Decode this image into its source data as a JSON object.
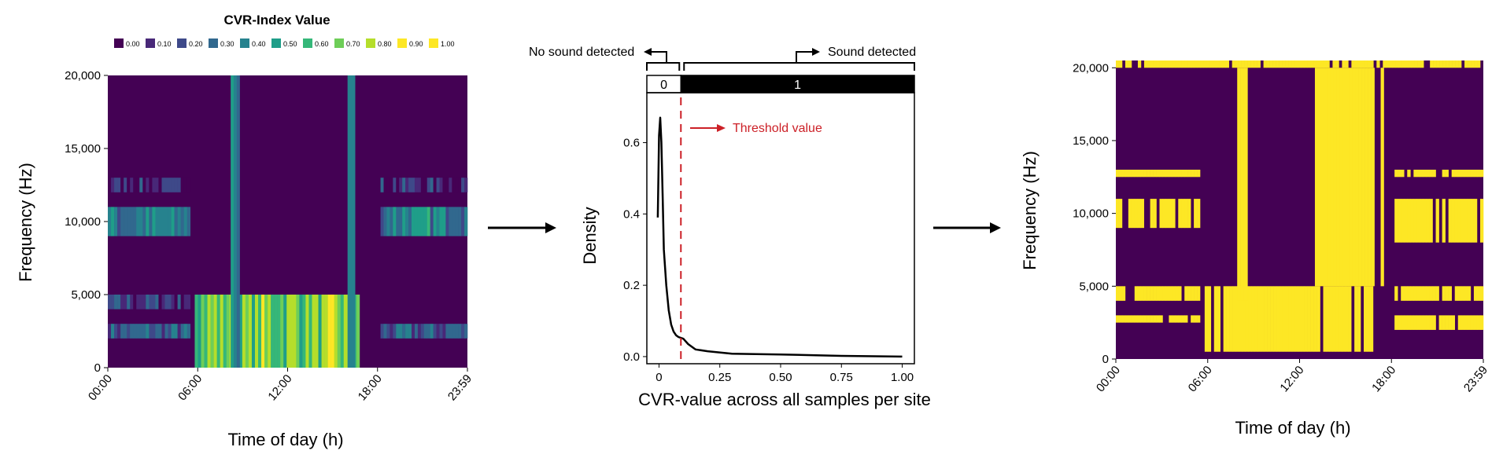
{
  "palette": [
    "#440154",
    "#482878",
    "#3e4989",
    "#31688e",
    "#26828e",
    "#1f9e89",
    "#35b779",
    "#6ece58",
    "#b5de2b",
    "#fde725"
  ],
  "legend": {
    "title": "CVR-Index Value",
    "entries": [
      {
        "label": "0.00",
        "color": "#440154"
      },
      {
        "label": "0.10",
        "color": "#482878"
      },
      {
        "label": "0.20",
        "color": "#3e4989"
      },
      {
        "label": "0.30",
        "color": "#31688e"
      },
      {
        "label": "0.40",
        "color": "#26828e"
      },
      {
        "label": "0.50",
        "color": "#1f9e89"
      },
      {
        "label": "0.60",
        "color": "#35b779"
      },
      {
        "label": "0.70",
        "color": "#6ece58"
      },
      {
        "label": "0.80",
        "color": "#b5de2b"
      },
      {
        "label": "0.90",
        "color": "#fde725"
      },
      {
        "label": "1.00",
        "color": "#fde725"
      }
    ]
  },
  "chart_data": [
    {
      "type": "heatmap",
      "xlabel": "Time of day (h)",
      "ylabel": "Frequency (Hz)",
      "xticks": [
        "00:00",
        "06:00",
        "12:00",
        "18:00",
        "23:59"
      ],
      "yticks": [
        "0",
        "5,000",
        "10,000",
        "15,000",
        "20,000"
      ],
      "xlim": [
        0,
        24
      ],
      "ylim": [
        0,
        20000
      ],
      "bands_hz": [
        [
          0,
          1000
        ],
        [
          1000,
          2000
        ],
        [
          2000,
          3000
        ],
        [
          3000,
          4000
        ],
        [
          4000,
          5000
        ],
        [
          5000,
          6000
        ],
        [
          6000,
          7000
        ],
        [
          7000,
          8000
        ],
        [
          8000,
          9000
        ],
        [
          9000,
          10000
        ],
        [
          10000,
          11000
        ],
        [
          11000,
          12000
        ],
        [
          12000,
          13000
        ],
        [
          13000,
          14000
        ],
        [
          14000,
          15000
        ],
        [
          15000,
          20000
        ]
      ],
      "activity": [
        {
          "t": [
            0,
            5.5
          ],
          "f": [
            2000,
            3000
          ],
          "v": 0.3
        },
        {
          "t": [
            0,
            5.5
          ],
          "f": [
            4000,
            5000
          ],
          "v": 0.2
        },
        {
          "t": [
            0,
            5.5
          ],
          "f": [
            9000,
            11000
          ],
          "v": 0.4
        },
        {
          "t": [
            0,
            5.5
          ],
          "f": [
            12000,
            13000
          ],
          "v": 0.15
        },
        {
          "t": [
            5.8,
            16.8
          ],
          "f": [
            0,
            5000
          ],
          "v": 0.75
        },
        {
          "t": [
            8.2,
            8.8
          ],
          "f": [
            0,
            20000
          ],
          "v": 0.45
        },
        {
          "t": [
            16,
            16.5
          ],
          "f": [
            0,
            20000
          ],
          "v": 0.4
        },
        {
          "t": [
            18.2,
            24
          ],
          "f": [
            2000,
            3000
          ],
          "v": 0.3
        },
        {
          "t": [
            18.2,
            24
          ],
          "f": [
            9000,
            11000
          ],
          "v": 0.45
        },
        {
          "t": [
            18.2,
            24
          ],
          "f": [
            12000,
            13000
          ],
          "v": 0.15
        }
      ]
    },
    {
      "type": "line",
      "xlabel": "CVR-value across all samples per site",
      "ylabel": "Density",
      "xticks": [
        "0",
        "0.25",
        "0.50",
        "0.75",
        "1.00"
      ],
      "yticks": [
        "0.0",
        "0.2",
        "0.4",
        "0.6"
      ],
      "xlim": [
        -0.05,
        1.05
      ],
      "ylim": [
        -0.02,
        0.74
      ],
      "x": [
        -0.005,
        0.0,
        0.005,
        0.01,
        0.015,
        0.02,
        0.03,
        0.04,
        0.05,
        0.06,
        0.07,
        0.08,
        0.1,
        0.12,
        0.15,
        0.2,
        0.3,
        0.5,
        0.75,
        1.0
      ],
      "y": [
        0.39,
        0.62,
        0.67,
        0.6,
        0.45,
        0.3,
        0.2,
        0.13,
        0.09,
        0.07,
        0.06,
        0.055,
        0.05,
        0.035,
        0.02,
        0.015,
        0.008,
        0.006,
        0.002,
        0.0
      ],
      "threshold": 0.09,
      "threshold_label": "Threshold value",
      "strip": {
        "labels": [
          "0",
          "1"
        ],
        "split": 0.09
      },
      "annotations": {
        "left": "No sound detected",
        "right": "Sound detected"
      }
    },
    {
      "type": "heatmap",
      "xlabel": "Time of day (h)",
      "ylabel": "Frequency (Hz)",
      "xticks": [
        "00:00",
        "06:00",
        "12:00",
        "18:00",
        "23:59"
      ],
      "yticks": [
        "0",
        "5,000",
        "10,000",
        "15,000",
        "20,000"
      ],
      "xlim": [
        0,
        24
      ],
      "ylim": [
        0,
        20500
      ],
      "binary_colors": {
        "0": "#440154",
        "1": "#fde725"
      },
      "activity": [
        {
          "t": [
            0,
            24
          ],
          "f": [
            20000,
            20500
          ],
          "v": 1
        },
        {
          "t": [
            0,
            5.5
          ],
          "f": [
            2500,
            3000
          ],
          "v": 1
        },
        {
          "t": [
            0,
            5.5
          ],
          "f": [
            4000,
            5000
          ],
          "v": 1
        },
        {
          "t": [
            0,
            5.5
          ],
          "f": [
            9000,
            11000
          ],
          "v": 1
        },
        {
          "t": [
            0,
            5.5
          ],
          "f": [
            12500,
            13000
          ],
          "v": 1
        },
        {
          "t": [
            5.8,
            16.8
          ],
          "f": [
            500,
            5000
          ],
          "v": 1
        },
        {
          "t": [
            7.7,
            8.6
          ],
          "f": [
            4000,
            20000
          ],
          "v": 1
        },
        {
          "t": [
            13,
            17.5
          ],
          "f": [
            5000,
            20000
          ],
          "v": 1
        },
        {
          "t": [
            18.2,
            24
          ],
          "f": [
            2000,
            3000
          ],
          "v": 1
        },
        {
          "t": [
            18.2,
            24
          ],
          "f": [
            4000,
            5000
          ],
          "v": 1
        },
        {
          "t": [
            18.2,
            24
          ],
          "f": [
            8000,
            11000
          ],
          "v": 1
        },
        {
          "t": [
            18.2,
            24
          ],
          "f": [
            12500,
            13000
          ],
          "v": 1
        }
      ]
    }
  ]
}
